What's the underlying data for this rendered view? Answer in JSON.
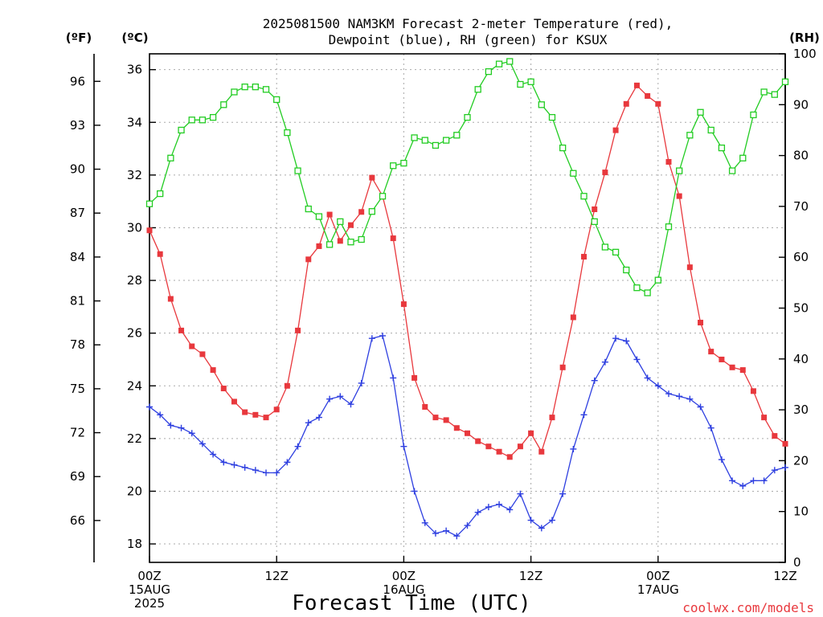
{
  "title_line1": "2025081500 NAM3KM Forecast 2-meter Temperature (red),",
  "title_line2": "Dewpoint (blue), RH (green) for KSUX",
  "units": {
    "fahrenheit": "(ºF)",
    "celsius": "(ºC)",
    "rh": "(RH)"
  },
  "credit": "coolwx.com/models",
  "colors": {
    "temperature": "#e8383d",
    "dewpoint": "#2e3fe0",
    "rh": "#22cc22",
    "credit": "#e8383d"
  },
  "chart_data": {
    "type": "line",
    "xlabel": "Forecast Time (UTC)",
    "x_hours": [
      0,
      1,
      2,
      3,
      4,
      5,
      6,
      7,
      8,
      9,
      10,
      11,
      12,
      13,
      14,
      15,
      16,
      17,
      18,
      19,
      20,
      21,
      22,
      23,
      24,
      25,
      26,
      27,
      28,
      29,
      30,
      31,
      32,
      33,
      34,
      35,
      36,
      37,
      38,
      39,
      40,
      41,
      42,
      43,
      44,
      45,
      46,
      47,
      48,
      49,
      50,
      51,
      52,
      53,
      54,
      55,
      56,
      57,
      58,
      59,
      60
    ],
    "x_ticks": [
      {
        "hour": 0,
        "line1": "00Z",
        "line2": "15AUG",
        "line3": "2025"
      },
      {
        "hour": 12,
        "line1": "12Z",
        "line2": "",
        "line3": ""
      },
      {
        "hour": 24,
        "line1": "00Z",
        "line2": "16AUG",
        "line3": ""
      },
      {
        "hour": 36,
        "line1": "12Z",
        "line2": "",
        "line3": ""
      },
      {
        "hour": 48,
        "line1": "00Z",
        "line2": "17AUG",
        "line3": ""
      },
      {
        "hour": 60,
        "line1": "12Z",
        "line2": "",
        "line3": ""
      }
    ],
    "xlim": [
      0,
      60
    ],
    "y_celsius": {
      "ylim": [
        17.3,
        36.6
      ],
      "ticks": [
        "18",
        "20",
        "22",
        "24",
        "26",
        "28",
        "30",
        "32",
        "34",
        "36"
      ]
    },
    "y_fahrenheit": {
      "ticks": [
        "66",
        "69",
        "72",
        "75",
        "78",
        "81",
        "84",
        "87",
        "90",
        "93",
        "96"
      ]
    },
    "y_rh": {
      "ylim": [
        0,
        100
      ],
      "ticks": [
        "0",
        "10",
        "20",
        "30",
        "40",
        "50",
        "60",
        "70",
        "80",
        "90",
        "100"
      ]
    },
    "grid": true,
    "series": [
      {
        "name": "Temperature",
        "axis": "celsius",
        "marker": "filled-square",
        "values": [
          29.9,
          29.0,
          27.3,
          26.1,
          25.5,
          25.2,
          24.6,
          23.9,
          23.4,
          23.0,
          22.9,
          22.8,
          23.1,
          24.0,
          26.1,
          28.8,
          29.3,
          30.5,
          29.5,
          30.1,
          30.6,
          31.9,
          31.2,
          29.6,
          27.1,
          24.3,
          23.2,
          22.8,
          22.7,
          22.4,
          22.2,
          21.9,
          21.7,
          21.5,
          21.3,
          21.7,
          22.2,
          21.5,
          22.8,
          24.7,
          26.6,
          28.9,
          30.7,
          32.1,
          33.7,
          34.7,
          35.4,
          35.0,
          34.7,
          32.5,
          31.2,
          28.5,
          26.4,
          25.3,
          25.0,
          24.7,
          24.6,
          23.8,
          22.8,
          22.1,
          21.8
        ]
      },
      {
        "name": "Dewpoint",
        "axis": "celsius",
        "marker": "plus",
        "values": [
          23.2,
          22.9,
          22.5,
          22.4,
          22.2,
          21.8,
          21.4,
          21.1,
          21.0,
          20.9,
          20.8,
          20.7,
          20.7,
          21.1,
          21.7,
          22.6,
          22.8,
          23.5,
          23.6,
          23.3,
          24.1,
          25.8,
          25.9,
          24.3,
          21.7,
          20.0,
          18.8,
          18.4,
          18.5,
          18.3,
          18.7,
          19.2,
          19.4,
          19.5,
          19.3,
          19.9,
          18.9,
          18.6,
          18.9,
          19.9,
          21.6,
          22.9,
          24.2,
          24.9,
          25.8,
          25.7,
          25.0,
          24.3,
          24.0,
          23.7,
          23.6,
          23.5,
          23.2,
          22.4,
          21.2,
          20.4,
          20.2,
          20.4,
          20.4,
          20.8,
          20.9
        ]
      },
      {
        "name": "RH",
        "axis": "rh",
        "marker": "open-square",
        "values": [
          70.5,
          72.5,
          79.5,
          85,
          87,
          87,
          87.5,
          90,
          92.5,
          93.5,
          93.5,
          93,
          91,
          84.5,
          77,
          69.5,
          68,
          62.5,
          67,
          63,
          63.5,
          69,
          72,
          78,
          78.5,
          83.5,
          83,
          82,
          83,
          84,
          87.5,
          93,
          96.5,
          98,
          98.5,
          94,
          94.5,
          90,
          87.5,
          81.5,
          76.5,
          72,
          67,
          62,
          61,
          57.5,
          54,
          53,
          55.5,
          66,
          77,
          84,
          88.5,
          85,
          81.5,
          77,
          79.5,
          88,
          92.5,
          92,
          94.5
        ]
      }
    ]
  }
}
